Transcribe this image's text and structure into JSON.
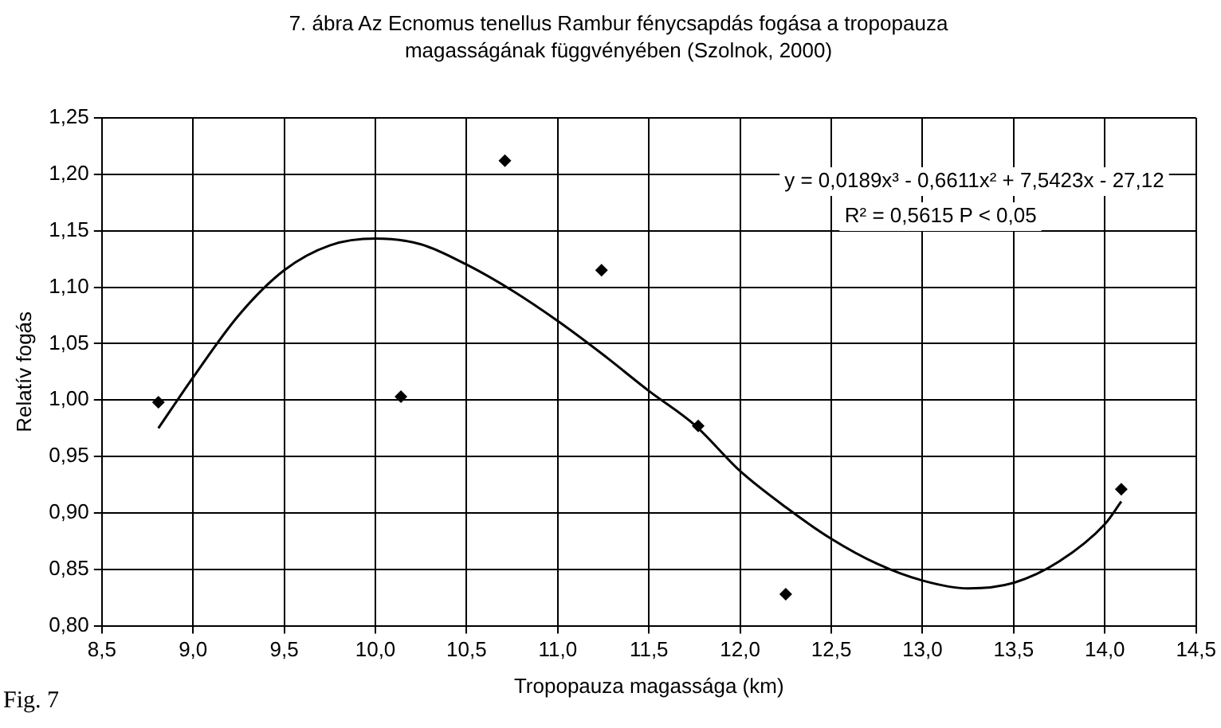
{
  "chart_data": {
    "type": "scatter",
    "title": "7. ábra Az Ecnomus tenellus Rambur fénycsapdás fogása a tropopauza magasságának függvényében (Szolnok, 2000)",
    "xlabel": "Tropopauza magassága (km)",
    "ylabel": "Relatív fogás",
    "x": [
      8.81,
      10.14,
      10.71,
      11.24,
      11.77,
      12.25,
      14.09
    ],
    "series": [
      {
        "color": "#000000",
        "values": [
          0.998,
          1.003,
          1.212,
          1.115,
          0.977,
          0.828,
          0.921
        ],
        "marker": "diamond"
      },
      {
        "type": "line",
        "color": "#000000",
        "marker": "none",
        "line_style": "solid",
        "x": [
          8.81,
          9.0,
          9.25,
          9.5,
          9.75,
          10.0,
          10.25,
          10.5,
          10.75,
          11.0,
          11.25,
          11.5,
          11.75,
          12.0,
          12.25,
          12.5,
          12.75,
          13.0,
          13.25,
          13.5,
          13.75,
          14.0,
          14.09
        ],
        "values": [
          0.975,
          1.02,
          1.075,
          1.115,
          1.137,
          1.143,
          1.138,
          1.12,
          1.097,
          1.07,
          1.04,
          1.008,
          0.978,
          0.937,
          0.905,
          0.877,
          0.855,
          0.84,
          0.833,
          0.838,
          0.857,
          0.89,
          0.91
        ]
      }
    ],
    "xlim": [
      8.5,
      14.5
    ],
    "xticks": [
      {
        "value": 8.5,
        "label": "8,5"
      },
      {
        "value": 9,
        "label": "9,0"
      },
      {
        "value": 9.5,
        "label": "9,5"
      },
      {
        "value": 10,
        "label": "10,0"
      },
      {
        "value": 10.5,
        "label": "10,5"
      },
      {
        "value": 11,
        "label": "11,0"
      },
      {
        "value": 11.5,
        "label": "11,5"
      },
      {
        "value": 12,
        "label": "12,0"
      },
      {
        "value": 12.5,
        "label": "12,5"
      },
      {
        "value": 13,
        "label": "13,0"
      },
      {
        "value": 13.5,
        "label": "13,5"
      },
      {
        "value": 14,
        "label": "14,0"
      },
      {
        "value": 14.5,
        "label": "14,5"
      }
    ],
    "ylim": [
      0.8,
      1.25
    ],
    "yticks": [
      {
        "value": 0.8,
        "label": "0,80"
      },
      {
        "value": 0.85,
        "label": "0,85"
      },
      {
        "value": 0.9,
        "label": "0,90"
      },
      {
        "value": 0.95,
        "label": "0,95"
      },
      {
        "value": 1,
        "label": "1,00"
      },
      {
        "value": 1.05,
        "label": "1,05"
      },
      {
        "value": 1.1,
        "label": "1,10"
      },
      {
        "value": 1.15,
        "label": "1,15"
      },
      {
        "value": 1.2,
        "label": "1,20"
      },
      {
        "value": 1.25,
        "label": "1,25"
      }
    ],
    "grid": true,
    "legend": false,
    "annotations": [
      "y = 0,0189x³ - 0,6611x² + 7,5423x - 27,12",
      "R² = 0,5615 P < 0,05",
      "Fig. 7"
    ]
  }
}
